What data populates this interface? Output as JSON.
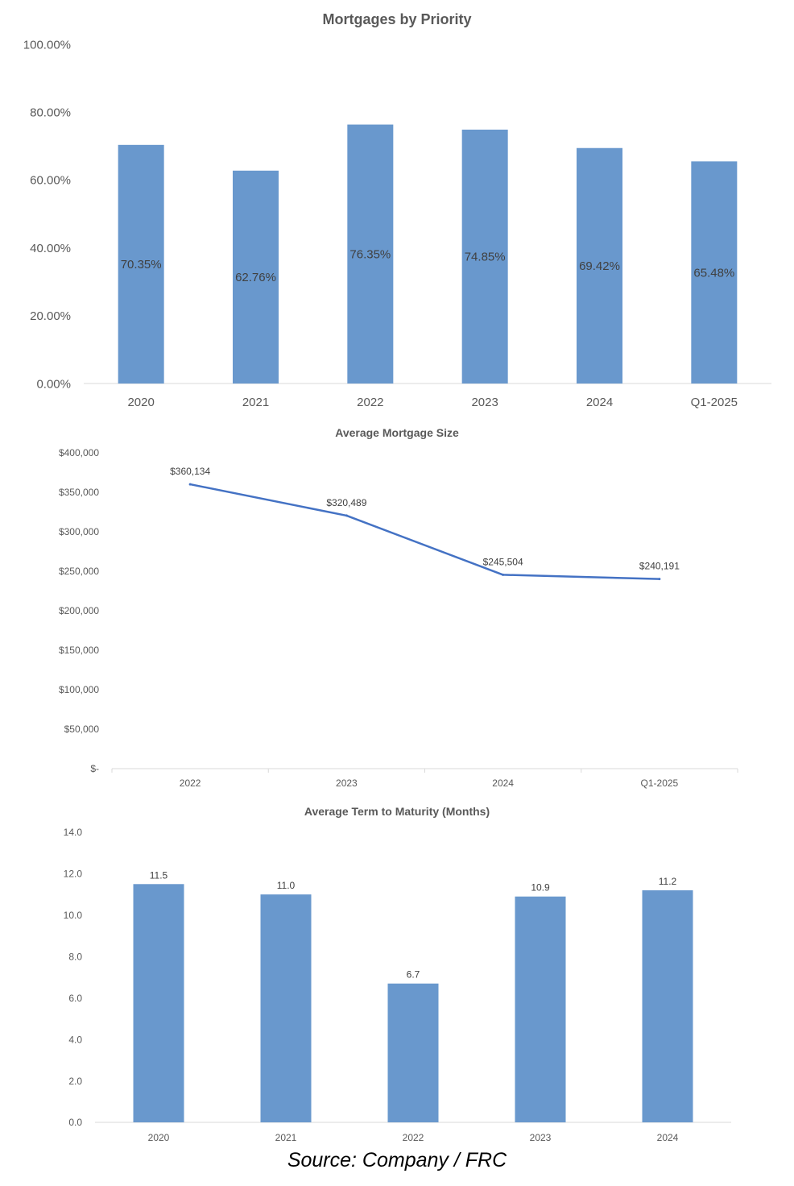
{
  "chart_data": [
    {
      "type": "bar",
      "title": "Mortgages by Priority",
      "categories": [
        "2020",
        "2021",
        "2022",
        "2023",
        "2024",
        "Q1-2025"
      ],
      "values": [
        70.35,
        62.76,
        76.35,
        74.85,
        69.42,
        65.48
      ],
      "value_labels": [
        "70.35%",
        "62.76%",
        "76.35%",
        "74.85%",
        "69.42%",
        "65.48%"
      ],
      "ylim": [
        0,
        100
      ],
      "yticks": [
        0,
        20,
        40,
        60,
        80,
        100
      ],
      "ytick_labels": [
        "0.00%",
        "20.00%",
        "40.00%",
        "60.00%",
        "80.00%",
        "100.00%"
      ],
      "label_position": "inside-center",
      "grid": false,
      "color": "#6998cd"
    },
    {
      "type": "line",
      "title": "Average Mortgage Size",
      "categories": [
        "2022",
        "2023",
        "2024",
        "Q1-2025"
      ],
      "values": [
        360134,
        320489,
        245504,
        240191
      ],
      "value_labels": [
        "$360,134",
        "$320,489",
        "$245,504",
        "$240,191"
      ],
      "ylim": [
        0,
        400000
      ],
      "yticks": [
        0,
        50000,
        100000,
        150000,
        200000,
        250000,
        300000,
        350000,
        400000
      ],
      "ytick_labels": [
        "$-",
        "$50,000",
        "$100,000",
        "$150,000",
        "$200,000",
        "$250,000",
        "$300,000",
        "$350,000",
        "$400,000"
      ],
      "grid": false,
      "color": "#4472c4"
    },
    {
      "type": "bar",
      "title": "Average Term to Maturity (Months)",
      "categories": [
        "2020",
        "2021",
        "2022",
        "2023",
        "2024"
      ],
      "values": [
        11.5,
        11.0,
        6.7,
        10.9,
        11.2
      ],
      "value_labels": [
        "11.5",
        "11.0",
        "6.7",
        "10.9",
        "11.2"
      ],
      "ylim": [
        0,
        14
      ],
      "yticks": [
        0,
        2,
        4,
        6,
        8,
        10,
        12,
        14
      ],
      "ytick_labels": [
        "0.0",
        "2.0",
        "4.0",
        "6.0",
        "8.0",
        "10.0",
        "12.0",
        "14.0"
      ],
      "label_position": "above",
      "grid": false,
      "color": "#6998cd"
    }
  ],
  "source": "Source: Company / FRC"
}
